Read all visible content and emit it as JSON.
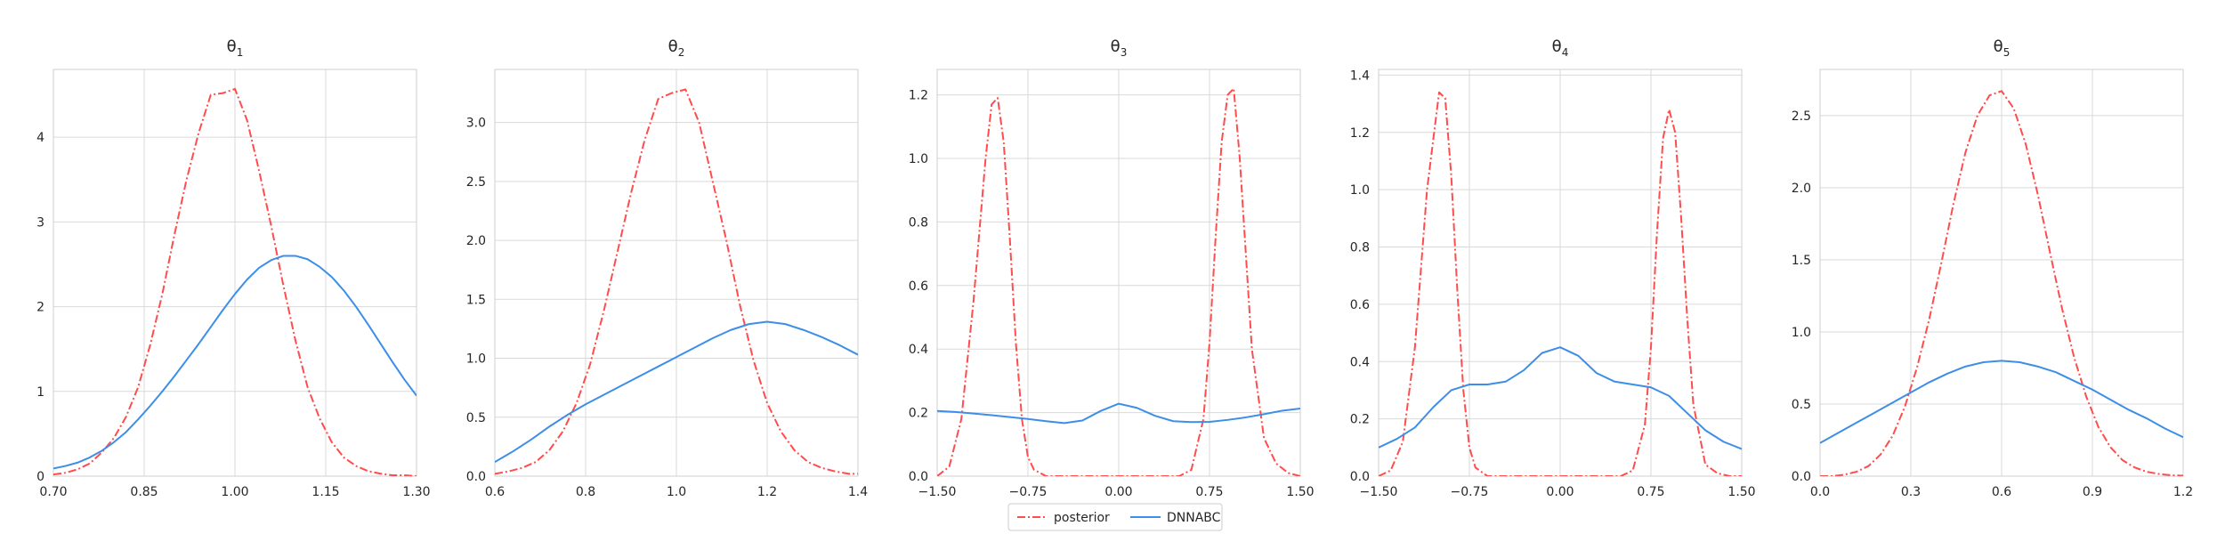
{
  "legend": {
    "placement": "bottom-center",
    "entries": [
      {
        "label": "posterior",
        "color": "#ff4c4c",
        "dash": "dash-dot"
      },
      {
        "label": "DNNABC",
        "color": "#3d8ee8",
        "dash": "solid"
      }
    ]
  },
  "chart_data": [
    {
      "type": "line",
      "title_base": "θ",
      "title_sub": "1",
      "grid": true,
      "xlim": [
        0.7,
        1.3
      ],
      "ylim": [
        0,
        4.8
      ],
      "xticks": [
        0.7,
        0.85,
        1.0,
        1.15,
        1.3
      ],
      "xtick_labels": [
        "0.70",
        "0.85",
        "1.00",
        "1.15",
        "1.30"
      ],
      "yticks": [
        0,
        1,
        2,
        3,
        4
      ],
      "ytick_labels": [
        "0",
        "1",
        "2",
        "3",
        "4"
      ],
      "series": [
        {
          "name": "posterior",
          "x": [
            0.7,
            0.72,
            0.74,
            0.76,
            0.78,
            0.8,
            0.82,
            0.84,
            0.86,
            0.88,
            0.9,
            0.92,
            0.94,
            0.96,
            0.98,
            1.0,
            1.02,
            1.04,
            1.06,
            1.08,
            1.1,
            1.12,
            1.14,
            1.16,
            1.18,
            1.2,
            1.22,
            1.24,
            1.26,
            1.28,
            1.3
          ],
          "y": [
            0.02,
            0.04,
            0.08,
            0.15,
            0.28,
            0.45,
            0.7,
            1.05,
            1.55,
            2.15,
            2.85,
            3.5,
            4.05,
            4.5,
            4.52,
            4.57,
            4.2,
            3.6,
            2.95,
            2.25,
            1.6,
            1.05,
            0.68,
            0.4,
            0.22,
            0.12,
            0.06,
            0.03,
            0.01,
            0.01,
            0.0
          ]
        },
        {
          "name": "DNNABC",
          "x": [
            0.7,
            0.72,
            0.74,
            0.76,
            0.78,
            0.8,
            0.82,
            0.84,
            0.86,
            0.88,
            0.9,
            0.92,
            0.94,
            0.96,
            0.98,
            1.0,
            1.02,
            1.04,
            1.06,
            1.08,
            1.1,
            1.12,
            1.14,
            1.16,
            1.18,
            1.2,
            1.22,
            1.24,
            1.26,
            1.28,
            1.3
          ],
          "y": [
            0.09,
            0.12,
            0.16,
            0.22,
            0.3,
            0.4,
            0.52,
            0.67,
            0.83,
            1.0,
            1.18,
            1.37,
            1.56,
            1.76,
            1.96,
            2.15,
            2.32,
            2.46,
            2.55,
            2.6,
            2.6,
            2.56,
            2.47,
            2.35,
            2.19,
            2.0,
            1.79,
            1.57,
            1.35,
            1.14,
            0.95
          ]
        }
      ]
    },
    {
      "type": "line",
      "title_base": "θ",
      "title_sub": "2",
      "grid": true,
      "xlim": [
        0.6,
        1.4
      ],
      "ylim": [
        0,
        3.45
      ],
      "xticks": [
        0.6,
        0.8,
        1.0,
        1.2,
        1.4
      ],
      "xtick_labels": [
        "0.6",
        "0.8",
        "1.0",
        "1.2",
        "1.4"
      ],
      "yticks": [
        0,
        0.5,
        1.0,
        1.5,
        2.0,
        2.5,
        3.0
      ],
      "ytick_labels": [
        "0.0",
        "0.5",
        "1.0",
        "1.5",
        "2.0",
        "2.5",
        "3.0"
      ],
      "series": [
        {
          "name": "posterior",
          "x": [
            0.6,
            0.63,
            0.66,
            0.69,
            0.72,
            0.75,
            0.78,
            0.81,
            0.84,
            0.87,
            0.9,
            0.93,
            0.96,
            0.99,
            1.02,
            1.05,
            1.08,
            1.11,
            1.14,
            1.17,
            1.2,
            1.23,
            1.26,
            1.29,
            1.32,
            1.35,
            1.38,
            1.4
          ],
          "y": [
            0.02,
            0.04,
            0.07,
            0.12,
            0.22,
            0.38,
            0.62,
            0.95,
            1.4,
            1.9,
            2.4,
            2.85,
            3.2,
            3.25,
            3.28,
            3.0,
            2.5,
            2.0,
            1.45,
            0.98,
            0.62,
            0.38,
            0.22,
            0.12,
            0.07,
            0.04,
            0.02,
            0.02
          ]
        },
        {
          "name": "DNNABC",
          "x": [
            0.6,
            0.64,
            0.68,
            0.72,
            0.76,
            0.8,
            0.84,
            0.88,
            0.92,
            0.96,
            1.0,
            1.04,
            1.08,
            1.12,
            1.16,
            1.2,
            1.24,
            1.28,
            1.32,
            1.36,
            1.4
          ],
          "y": [
            0.12,
            0.21,
            0.31,
            0.42,
            0.52,
            0.61,
            0.69,
            0.77,
            0.85,
            0.93,
            1.01,
            1.09,
            1.17,
            1.24,
            1.29,
            1.31,
            1.29,
            1.24,
            1.18,
            1.11,
            1.03
          ]
        }
      ]
    },
    {
      "type": "line",
      "title_base": "θ",
      "title_sub": "3",
      "grid": true,
      "xlim": [
        -1.5,
        1.5
      ],
      "ylim": [
        0,
        1.28
      ],
      "xticks": [
        -1.5,
        -0.75,
        0.0,
        0.75,
        1.5
      ],
      "xtick_labels": [
        "−1.50",
        "−0.75",
        "0.00",
        "0.75",
        "1.50"
      ],
      "yticks": [
        0,
        0.2,
        0.4,
        0.6,
        0.8,
        1.0,
        1.2
      ],
      "ytick_labels": [
        "0.0",
        "0.2",
        "0.4",
        "0.6",
        "0.8",
        "1.0",
        "1.2"
      ],
      "series": [
        {
          "name": "posterior",
          "x": [
            -1.5,
            -1.4,
            -1.3,
            -1.2,
            -1.1,
            -1.05,
            -1.0,
            -0.95,
            -0.9,
            -0.85,
            -0.8,
            -0.75,
            -0.7,
            -0.6,
            -0.5,
            -0.4,
            -0.2,
            0.0,
            0.2,
            0.4,
            0.5,
            0.6,
            0.7,
            0.75,
            0.8,
            0.85,
            0.9,
            0.95,
            1.0,
            1.05,
            1.1,
            1.2,
            1.3,
            1.4,
            1.5
          ],
          "y": [
            0.0,
            0.03,
            0.18,
            0.55,
            1.0,
            1.17,
            1.19,
            1.05,
            0.75,
            0.42,
            0.18,
            0.06,
            0.02,
            0.0,
            0.0,
            0.0,
            0.0,
            0.0,
            0.0,
            0.0,
            0.0,
            0.02,
            0.18,
            0.42,
            0.75,
            1.05,
            1.2,
            1.22,
            1.0,
            0.7,
            0.4,
            0.12,
            0.04,
            0.01,
            0.0
          ]
        },
        {
          "name": "DNNABC",
          "x": [
            -1.5,
            -1.35,
            -1.2,
            -1.05,
            -0.9,
            -0.75,
            -0.6,
            -0.45,
            -0.3,
            -0.15,
            0.0,
            0.15,
            0.3,
            0.45,
            0.6,
            0.75,
            0.9,
            1.05,
            1.2,
            1.35,
            1.5
          ],
          "y": [
            0.205,
            0.202,
            0.197,
            0.192,
            0.186,
            0.18,
            0.173,
            0.167,
            0.175,
            0.205,
            0.228,
            0.215,
            0.19,
            0.173,
            0.17,
            0.171,
            0.177,
            0.185,
            0.195,
            0.206,
            0.213
          ]
        }
      ]
    },
    {
      "type": "line",
      "title_base": "θ",
      "title_sub": "4",
      "grid": true,
      "xlim": [
        -1.5,
        1.5
      ],
      "ylim": [
        0,
        1.42
      ],
      "xticks": [
        -1.5,
        -0.75,
        0.0,
        0.75,
        1.5
      ],
      "xtick_labels": [
        "−1.50",
        "−0.75",
        "0.00",
        "0.75",
        "1.50"
      ],
      "yticks": [
        0,
        0.2,
        0.4,
        0.6,
        0.8,
        1.0,
        1.2,
        1.4
      ],
      "ytick_labels": [
        "0.0",
        "0.2",
        "0.4",
        "0.6",
        "0.8",
        "1.0",
        "1.2",
        "1.4"
      ],
      "series": [
        {
          "name": "posterior",
          "x": [
            -1.5,
            -1.4,
            -1.3,
            -1.2,
            -1.1,
            -1.0,
            -0.95,
            -0.9,
            -0.85,
            -0.8,
            -0.75,
            -0.7,
            -0.6,
            -0.5,
            -0.3,
            0.0,
            0.3,
            0.5,
            0.6,
            0.7,
            0.75,
            0.8,
            0.85,
            0.9,
            0.95,
            1.0,
            1.05,
            1.1,
            1.2,
            1.3,
            1.4,
            1.5
          ],
          "y": [
            0.0,
            0.02,
            0.12,
            0.45,
            1.0,
            1.34,
            1.32,
            1.05,
            0.65,
            0.3,
            0.1,
            0.03,
            0.0,
            0.0,
            0.0,
            0.0,
            0.0,
            0.0,
            0.02,
            0.18,
            0.45,
            0.85,
            1.18,
            1.28,
            1.2,
            0.9,
            0.55,
            0.25,
            0.04,
            0.01,
            0.0,
            0.0
          ]
        },
        {
          "name": "DNNABC",
          "x": [
            -1.5,
            -1.35,
            -1.2,
            -1.05,
            -0.9,
            -0.75,
            -0.6,
            -0.45,
            -0.3,
            -0.15,
            0.0,
            0.15,
            0.3,
            0.45,
            0.6,
            0.75,
            0.9,
            1.05,
            1.2,
            1.35,
            1.5
          ],
          "y": [
            0.1,
            0.13,
            0.17,
            0.24,
            0.3,
            0.32,
            0.32,
            0.33,
            0.37,
            0.43,
            0.45,
            0.42,
            0.36,
            0.33,
            0.32,
            0.31,
            0.28,
            0.22,
            0.16,
            0.12,
            0.095
          ]
        }
      ]
    },
    {
      "type": "line",
      "title_base": "θ",
      "title_sub": "5",
      "grid": true,
      "xlim": [
        0.0,
        1.2
      ],
      "ylim": [
        0,
        2.82
      ],
      "xticks": [
        0.0,
        0.3,
        0.6,
        0.9,
        1.2
      ],
      "xtick_labels": [
        "0.0",
        "0.3",
        "0.6",
        "0.9",
        "1.2"
      ],
      "yticks": [
        0,
        0.5,
        1.0,
        1.5,
        2.0,
        2.5
      ],
      "ytick_labels": [
        "0.0",
        "0.5",
        "1.0",
        "1.5",
        "2.0",
        "2.5"
      ],
      "series": [
        {
          "name": "posterior",
          "x": [
            0.0,
            0.04,
            0.08,
            0.12,
            0.16,
            0.2,
            0.24,
            0.28,
            0.32,
            0.36,
            0.4,
            0.44,
            0.48,
            0.52,
            0.56,
            0.6,
            0.64,
            0.68,
            0.72,
            0.76,
            0.8,
            0.84,
            0.88,
            0.92,
            0.96,
            1.0,
            1.04,
            1.08,
            1.12,
            1.16,
            1.2
          ],
          "y": [
            0.0,
            0.0,
            0.01,
            0.03,
            0.07,
            0.15,
            0.28,
            0.48,
            0.75,
            1.08,
            1.47,
            1.88,
            2.24,
            2.5,
            2.64,
            2.67,
            2.55,
            2.3,
            1.95,
            1.55,
            1.16,
            0.82,
            0.55,
            0.34,
            0.2,
            0.11,
            0.06,
            0.03,
            0.015,
            0.006,
            0.003
          ]
        },
        {
          "name": "DNNABC",
          "x": [
            0.0,
            0.06,
            0.12,
            0.18,
            0.24,
            0.3,
            0.36,
            0.42,
            0.48,
            0.54,
            0.6,
            0.66,
            0.72,
            0.78,
            0.84,
            0.9,
            0.96,
            1.02,
            1.08,
            1.14,
            1.2
          ],
          "y": [
            0.23,
            0.3,
            0.37,
            0.44,
            0.51,
            0.58,
            0.65,
            0.71,
            0.76,
            0.79,
            0.8,
            0.79,
            0.76,
            0.72,
            0.66,
            0.6,
            0.53,
            0.46,
            0.4,
            0.33,
            0.27
          ]
        }
      ]
    }
  ]
}
